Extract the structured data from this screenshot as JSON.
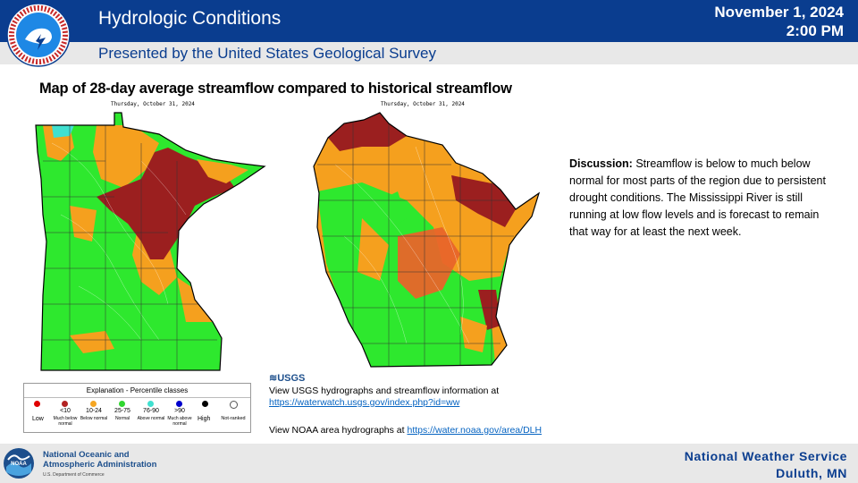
{
  "header": {
    "title": "Hydrologic Conditions",
    "date": "November 1, 2024",
    "time": "2:00 PM",
    "subtitle": "Presented by the United States Geological Survey",
    "logo_text": "NATIONAL WEATHER SERVICE"
  },
  "main": {
    "heading": "Map of 28-day average streamflow compared to historical streamflow",
    "maps": [
      {
        "region": "Minnesota",
        "date": "Thursday, October 31, 2024"
      },
      {
        "region": "Wisconsin",
        "date": "Thursday, October 31, 2024"
      }
    ],
    "discussion_label": "Discussion:",
    "discussion_text": "Streamflow is below to much below normal for most parts of the region due to persistent drought conditions. The Mississippi River is still running at low flow levels and is forecast to remain that way for at least the next week."
  },
  "legend": {
    "title": "Explanation - Percentile classes",
    "low": "Low",
    "high": "High",
    "classes": [
      {
        "range": "<10",
        "desc": "Much below normal",
        "color": "#b22222"
      },
      {
        "range": "10-24",
        "desc": "Below normal",
        "color": "#f5a623"
      },
      {
        "range": "25-75",
        "desc": "Normal",
        "color": "#2fd62f"
      },
      {
        "range": "76-90",
        "desc": "Above normal",
        "color": "#40e0d0"
      },
      {
        "range": ">90",
        "desc": "Much above normal",
        "color": "#0000cc"
      }
    ],
    "low_color": "#e00000",
    "high_color": "#000000",
    "not_ranked": "Not-ranked"
  },
  "links": {
    "usgs_logo": "USGS",
    "usgs_line": "View USGS hydrographs and streamflow information at",
    "usgs_url": "https://waterwatch.usgs.gov/index.php?id=ww",
    "noaa_line": "View NOAA  area hydrographs at ",
    "noaa_url": "https://water.noaa.gov/area/DLH"
  },
  "footer": {
    "noaa_name_1": "National Oceanic and",
    "noaa_name_2": "Atmospheric Administration",
    "noaa_dept": "U.S. Department of Commerce",
    "noaa_logo_text": "NOAA",
    "office_1": "National  Weather  Service",
    "office_2": "Duluth,  MN"
  },
  "colors": {
    "brand_blue": "#0a3d8f",
    "much_below": "#9b1f1f",
    "below": "#f5a01e",
    "normal": "#2ee82e",
    "above": "#40e0d0"
  }
}
